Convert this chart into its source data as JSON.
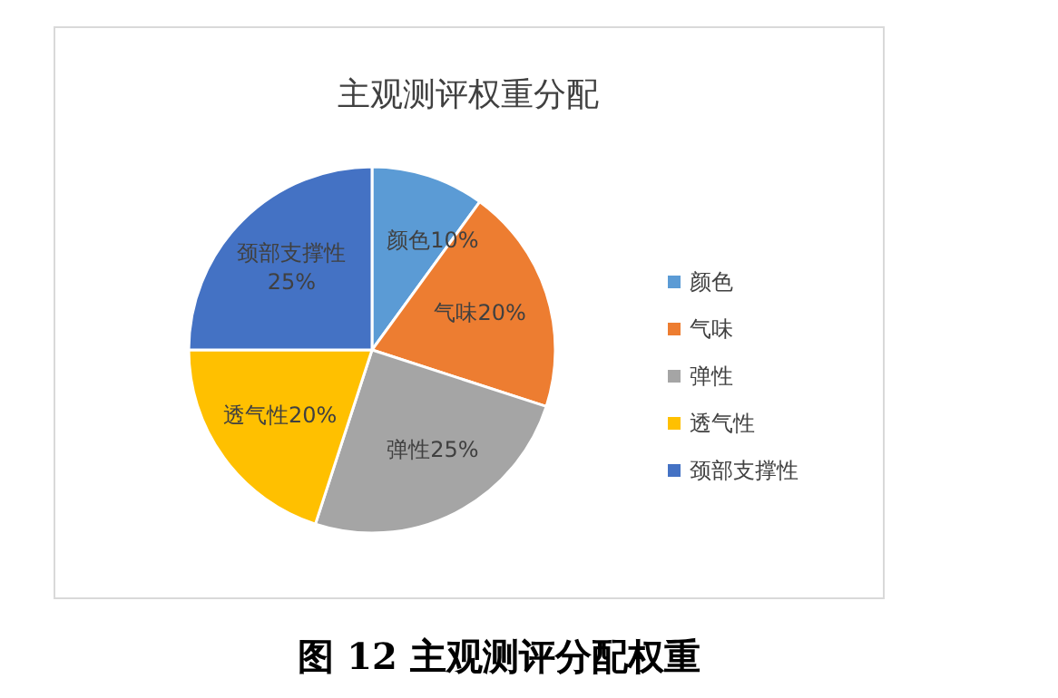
{
  "chart_data": {
    "type": "pie",
    "title": "主观测评权重分配",
    "categories": [
      "颜色",
      "气味",
      "弹性",
      "透气性",
      "颈部支撑性"
    ],
    "values": [
      10,
      20,
      25,
      20,
      25
    ],
    "colors": [
      "#5b9bd5",
      "#ed7d31",
      "#a5a5a5",
      "#ffc000",
      "#4472c4"
    ],
    "value_labels": [
      "颜色10%",
      "气味20%",
      "弹性25%",
      "透气性20%",
      "颈部支撑性\n25%"
    ],
    "legend": "right",
    "annotations": [
      "图 12  主观测评分配权重"
    ]
  }
}
